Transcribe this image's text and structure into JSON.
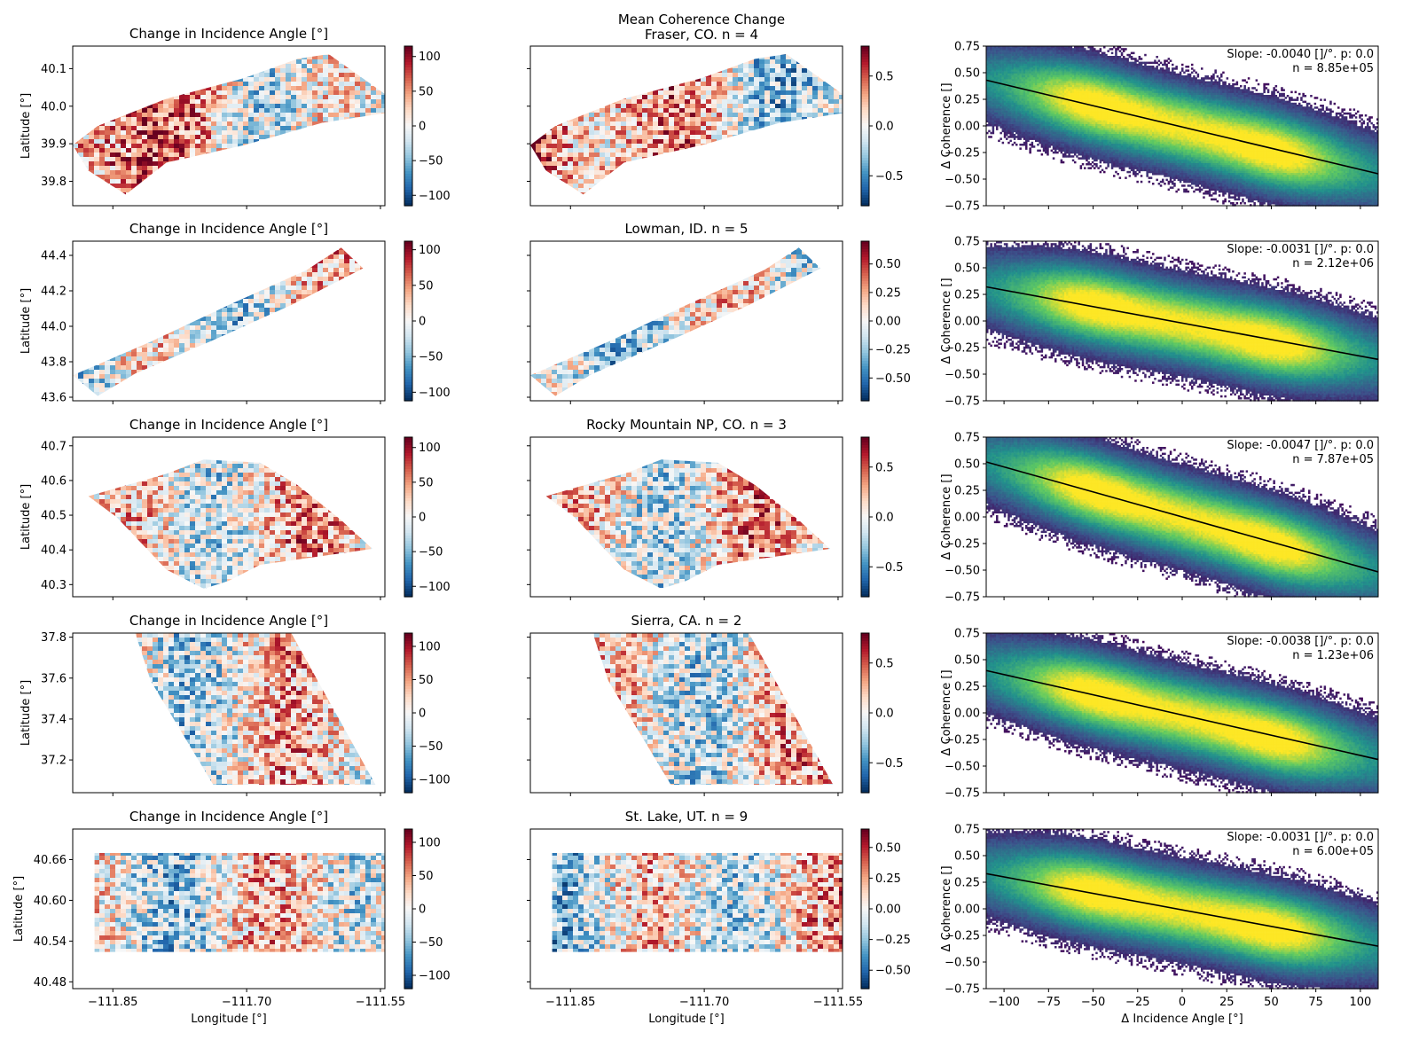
{
  "figure": {
    "suptitle_line1": "Mean Coherence Change",
    "suptitle_line2": "Fraser, CO. n = 4"
  },
  "colors": {
    "diverging": [
      "#053061",
      "#2166ac",
      "#4393c3",
      "#92c5de",
      "#d1e5f0",
      "#f7f7f7",
      "#fddbc7",
      "#f4a582",
      "#d6604d",
      "#b2182b",
      "#67001f"
    ],
    "density": [
      "#440154",
      "#3b528b",
      "#21918c",
      "#5ec962",
      "#fde725"
    ],
    "fit_line": "#000000"
  },
  "chart_data": [
    {
      "row": 1,
      "location": "Fraser, CO",
      "incidence_map": {
        "type": "heatmap",
        "title": "Change in Incidence Angle [°]",
        "ylabel": "Latitude [°]",
        "yticks": [
          "40.1",
          "40.0",
          "39.9",
          "39.8"
        ],
        "ytick_values": [
          40.1,
          40.0,
          39.9,
          39.8
        ],
        "ylim": [
          39.735,
          40.16
        ],
        "colorbar_ticks": [
          "100",
          "50",
          "0",
          "−50",
          "−100"
        ],
        "colorbar_values": [
          100,
          50,
          0,
          -50,
          -100
        ],
        "clim": [
          -115,
          115
        ]
      },
      "coherence_map": {
        "type": "heatmap",
        "title": "",
        "colorbar_ticks": [
          "0.5",
          "0.0",
          "−0.5"
        ],
        "colorbar_values": [
          0.5,
          0,
          -0.5
        ],
        "clim": [
          -0.8,
          0.8
        ]
      },
      "scatter": {
        "type": "heatmap",
        "kind": "2d-histogram",
        "ylabel": "Δ Coherence []",
        "xlim": [
          -110,
          110
        ],
        "ylim": [
          -0.75,
          0.75
        ],
        "yticks": [
          "0.75",
          "0.50",
          "0.25",
          "0.00",
          "−0.25",
          "−0.50",
          "−0.75"
        ],
        "slope_text": "Slope: -0.0040 []/°. p: 0.0",
        "n_text": "n = 8.85e+05",
        "fit_line": {
          "slope": -0.004,
          "intercept": -0.01
        }
      }
    },
    {
      "row": 2,
      "location": "Lowman, ID",
      "incidence_map": {
        "type": "heatmap",
        "title": "Change in Incidence Angle [°]",
        "ylabel": "Latitude [°]",
        "yticks": [
          "44.4",
          "44.2",
          "44.0",
          "43.8",
          "43.6"
        ],
        "ytick_values": [
          44.4,
          44.2,
          44.0,
          43.8,
          43.6
        ],
        "ylim": [
          43.58,
          44.48
        ],
        "colorbar_ticks": [
          "100",
          "50",
          "0",
          "−50",
          "−100"
        ],
        "colorbar_values": [
          100,
          50,
          0,
          -50,
          -100
        ],
        "clim": [
          -112,
          112
        ]
      },
      "coherence_map": {
        "type": "heatmap",
        "title": "Lowman, ID. n = 5",
        "colorbar_ticks": [
          "0.50",
          "0.25",
          "0.00",
          "−0.25",
          "−0.50"
        ],
        "colorbar_values": [
          0.5,
          0.25,
          0,
          -0.25,
          -0.5
        ],
        "clim": [
          -0.7,
          0.7
        ]
      },
      "scatter": {
        "type": "heatmap",
        "kind": "2d-histogram",
        "ylabel": "Δ Coherence []",
        "xlim": [
          -110,
          110
        ],
        "ylim": [
          -0.75,
          0.75
        ],
        "yticks": [
          "0.75",
          "0.50",
          "0.25",
          "0.00",
          "−0.25",
          "−0.50",
          "−0.75"
        ],
        "slope_text": "Slope: -0.0031 []/°. p: 0.0",
        "n_text": "n = 2.12e+06",
        "fit_line": {
          "slope": -0.0031,
          "intercept": -0.02
        }
      }
    },
    {
      "row": 3,
      "location": "Rocky Mountain NP, CO",
      "incidence_map": {
        "type": "heatmap",
        "title": "Change in Incidence Angle [°]",
        "ylabel": "Latitude [°]",
        "yticks": [
          "40.7",
          "40.6",
          "40.5",
          "40.4",
          "40.3"
        ],
        "ytick_values": [
          40.7,
          40.6,
          40.5,
          40.4,
          40.3
        ],
        "ylim": [
          40.265,
          40.725
        ],
        "colorbar_ticks": [
          "100",
          "50",
          "0",
          "−50",
          "−100"
        ],
        "colorbar_values": [
          100,
          50,
          0,
          -50,
          -100
        ],
        "clim": [
          -115,
          115
        ]
      },
      "coherence_map": {
        "type": "heatmap",
        "title": "Rocky Mountain NP, CO. n = 3",
        "colorbar_ticks": [
          "0.5",
          "0.0",
          "−0.5"
        ],
        "colorbar_values": [
          0.5,
          0,
          -0.5
        ],
        "clim": [
          -0.8,
          0.8
        ]
      },
      "scatter": {
        "type": "heatmap",
        "kind": "2d-histogram",
        "ylabel": "Δ Coherence []",
        "xlim": [
          -110,
          110
        ],
        "ylim": [
          -0.75,
          0.75
        ],
        "yticks": [
          "0.75",
          "0.50",
          "0.25",
          "0.00",
          "−0.25",
          "−0.50",
          "−0.75"
        ],
        "slope_text": "Slope: -0.0047 []/°. p: 0.0",
        "n_text": "n = 7.87e+05",
        "fit_line": {
          "slope": -0.0047,
          "intercept": 0.0
        }
      }
    },
    {
      "row": 4,
      "location": "Sierra, CA",
      "incidence_map": {
        "type": "heatmap",
        "title": "Change in Incidence Angle [°]",
        "ylabel": "Latitude [°]",
        "yticks": [
          "37.8",
          "37.6",
          "37.4",
          "37.2"
        ],
        "ytick_values": [
          37.8,
          37.6,
          37.4,
          37.2
        ],
        "ylim": [
          37.04,
          37.82
        ],
        "colorbar_ticks": [
          "100",
          "50",
          "0",
          "−50",
          "−100"
        ],
        "colorbar_values": [
          100,
          50,
          0,
          -50,
          -100
        ],
        "clim": [
          -120,
          120
        ]
      },
      "coherence_map": {
        "type": "heatmap",
        "title": "Sierra, CA. n = 2",
        "colorbar_ticks": [
          "0.5",
          "0.0",
          "−0.5"
        ],
        "colorbar_values": [
          0.5,
          0,
          -0.5
        ],
        "clim": [
          -0.8,
          0.8
        ]
      },
      "scatter": {
        "type": "heatmap",
        "kind": "2d-histogram",
        "ylabel": "Δ Coherence []",
        "xlim": [
          -110,
          110
        ],
        "ylim": [
          -0.75,
          0.75
        ],
        "yticks": [
          "0.75",
          "0.50",
          "0.25",
          "0.00",
          "−0.25",
          "−0.50",
          "−0.75"
        ],
        "slope_text": "Slope: -0.0038 []/°. p: 0.0",
        "n_text": "n = 1.23e+06",
        "fit_line": {
          "slope": -0.0038,
          "intercept": -0.02
        }
      }
    },
    {
      "row": 5,
      "location": "St. Lake, UT",
      "incidence_map": {
        "type": "heatmap",
        "title": "Change in Incidence Angle [°]",
        "ylabel": "Latitude [°]",
        "yticks": [
          "40.66",
          "40.60",
          "40.54",
          "40.48"
        ],
        "ytick_values": [
          40.66,
          40.6,
          40.54,
          40.48
        ],
        "ylim": [
          40.47,
          40.705
        ],
        "xlabel": "Longitude [°]",
        "xticks": [
          "−111.85",
          "−111.70",
          "−111.55"
        ],
        "xtick_values": [
          -111.85,
          -111.7,
          -111.55
        ],
        "xlim": [
          -111.895,
          -111.545
        ],
        "colorbar_ticks": [
          "100",
          "50",
          "0",
          "−50",
          "−100"
        ],
        "colorbar_values": [
          100,
          50,
          0,
          -50,
          -100
        ],
        "clim": [
          -120,
          120
        ]
      },
      "coherence_map": {
        "type": "heatmap",
        "title": "St. Lake, UT. n = 9",
        "xlabel": "Longitude [°]",
        "xticks": [
          "−111.85",
          "−111.70",
          "−111.55"
        ],
        "xtick_values": [
          -111.85,
          -111.7,
          -111.55
        ],
        "xlim": [
          -111.895,
          -111.545
        ],
        "colorbar_ticks": [
          "0.50",
          "0.25",
          "0.00",
          "−0.25",
          "−0.50"
        ],
        "colorbar_values": [
          0.5,
          0.25,
          0,
          -0.25,
          -0.5
        ],
        "clim": [
          -0.65,
          0.65
        ]
      },
      "scatter": {
        "type": "heatmap",
        "kind": "2d-histogram",
        "ylabel": "Δ Coherence []",
        "xlabel": "Δ Incidence Angle [°]",
        "xlim": [
          -110,
          110
        ],
        "ylim": [
          -0.75,
          0.75
        ],
        "xticks": [
          "−100",
          "−75",
          "−50",
          "−25",
          "0",
          "25",
          "50",
          "75",
          "100"
        ],
        "xtick_values": [
          -100,
          -75,
          -50,
          -25,
          0,
          25,
          50,
          75,
          100
        ],
        "yticks": [
          "0.75",
          "0.50",
          "0.25",
          "0.00",
          "−0.25",
          "−0.50",
          "−0.75"
        ],
        "slope_text": "Slope: -0.0031 []/°. p: 0.0",
        "n_text": "n = 6.00e+05",
        "fit_line": {
          "slope": -0.0031,
          "intercept": -0.01
        }
      }
    }
  ]
}
